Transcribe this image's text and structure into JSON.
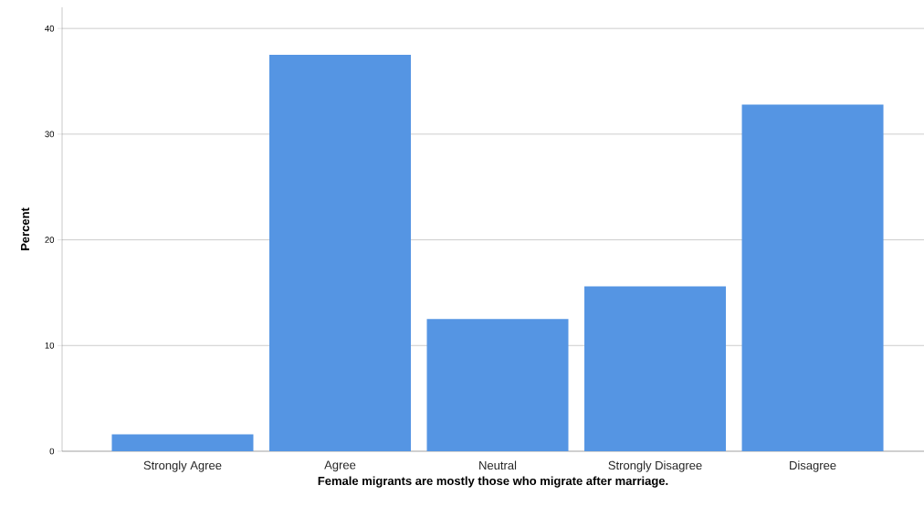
{
  "chart_data": {
    "type": "bar",
    "xlabel": "Female migrants are mostly those who migrate after marriage.",
    "ylabel": "Percent",
    "categories": [
      "Strongly Agree",
      "Agree",
      "Neutral",
      "Strongly Disagree",
      "Disagree"
    ],
    "values": [
      1.6,
      37.5,
      12.5,
      15.6,
      32.8
    ],
    "color": "#5595e3",
    "ylim": [
      0,
      42
    ],
    "yticks": [
      0,
      10,
      20,
      30,
      40
    ],
    "grid": "y"
  }
}
